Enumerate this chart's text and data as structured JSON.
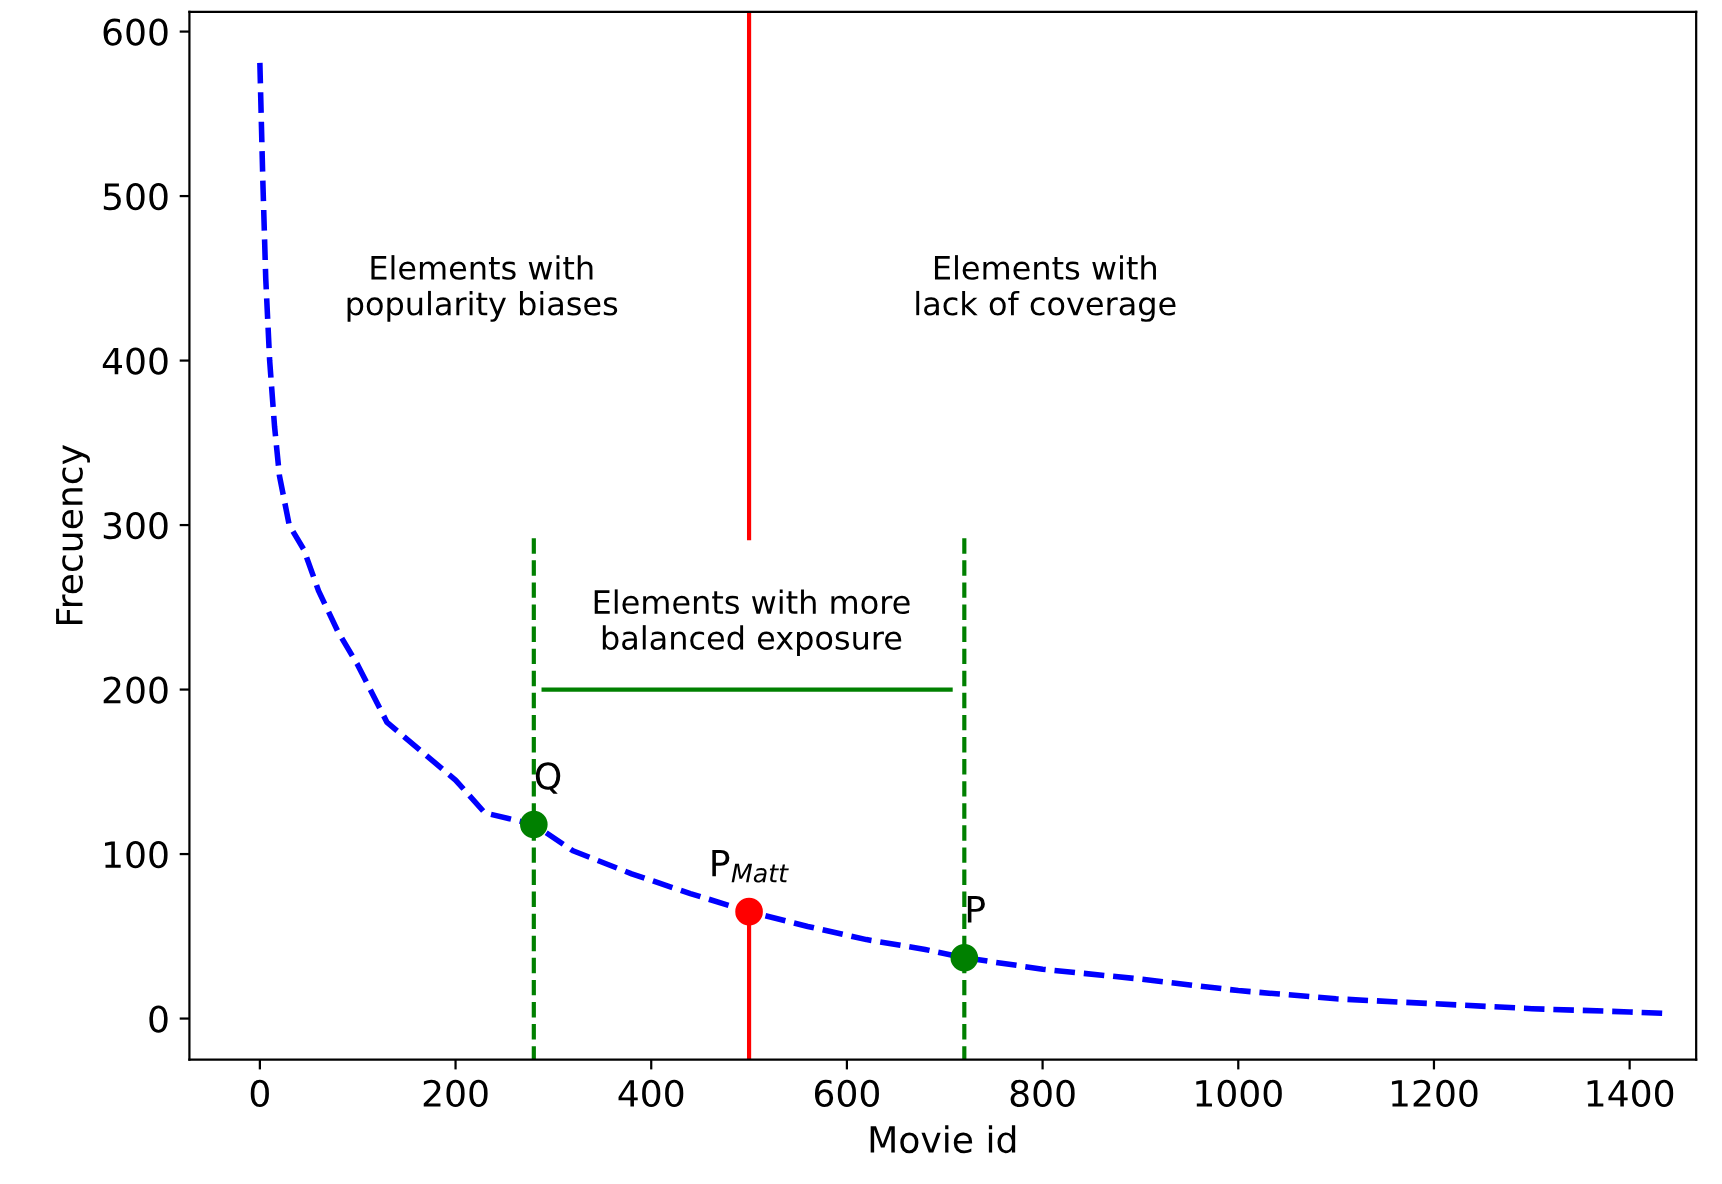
{
  "chart_data": {
    "type": "line",
    "xlabel": "Movie id",
    "ylabel": "Frecuency",
    "xlim": [
      -72,
      1468
    ],
    "ylim": [
      -25,
      612
    ],
    "xticks": [
      0,
      200,
      400,
      600,
      800,
      1000,
      1200,
      1400
    ],
    "yticks": [
      0,
      100,
      200,
      300,
      400,
      500,
      600
    ],
    "grid": false,
    "legend": false,
    "series": [
      {
        "color": "#0000ff",
        "line_style": "dashed",
        "marker": "none",
        "x": [
          0,
          3,
          6,
          10,
          15,
          20,
          30,
          45,
          60,
          80,
          100,
          130,
          170,
          200,
          230,
          280,
          320,
          380,
          440,
          500,
          560,
          620,
          680,
          720,
          800,
          900,
          1000,
          1100,
          1200,
          1300,
          1400,
          1440
        ],
        "values": [
          581,
          510,
          450,
          400,
          360,
          330,
          300,
          285,
          260,
          235,
          215,
          180,
          160,
          145,
          125,
          118,
          102,
          88,
          76,
          65,
          56,
          48,
          42,
          37,
          30,
          24,
          17,
          12,
          9,
          6,
          4,
          3
        ]
      },
      {
        "type": "line",
        "color": "#ff0000",
        "line_style": "solid",
        "marker": "none",
        "x": [
          500,
          500
        ],
        "values": [
          612,
          292
        ]
      },
      {
        "type": "line",
        "color": "#ff0000",
        "line_style": "solid",
        "marker": "none",
        "x": [
          500,
          500
        ],
        "values": [
          65,
          -25
        ]
      },
      {
        "type": "line",
        "color": "#008000",
        "line_style": "dashed",
        "marker": "none",
        "x": [
          280,
          280
        ],
        "values": [
          292,
          -25
        ]
      },
      {
        "type": "line",
        "color": "#008000",
        "line_style": "dashed",
        "marker": "none",
        "x": [
          720,
          720
        ],
        "values": [
          292,
          -25
        ]
      },
      {
        "type": "line",
        "color": "#008000",
        "line_style": "solid",
        "marker": "none",
        "x": [
          290,
          706
        ],
        "values": [
          200,
          200
        ]
      },
      {
        "type": "scatter",
        "marker": "circle",
        "x": [
          280,
          500,
          720
        ],
        "values": [
          118,
          65,
          37
        ],
        "colors": [
          "#008000",
          "#ff0000",
          "#008000"
        ]
      }
    ],
    "annotations": [
      "Elements with\npopularity biases",
      "Elements with\nlack of coverage",
      "Elements with more\nbalanced exposure",
      {
        "text": "Q",
        "x": 280,
        "y": 118
      },
      {
        "text": "P$_{Matt}$",
        "x": 500,
        "y": 65
      },
      {
        "text": "P",
        "x": 720,
        "y": 37
      }
    ]
  }
}
